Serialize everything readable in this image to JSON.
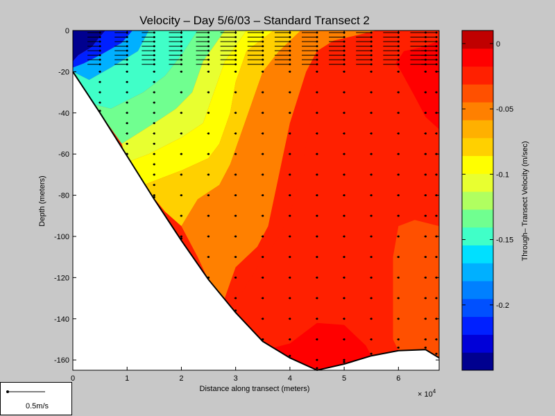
{
  "chart_data": {
    "type": "heatmap",
    "title": "Velocity – Day 5/6/03 – Standard Transect 2",
    "xlabel": "Distance along transect (meters)",
    "ylabel": "Depth (meters)",
    "x_multiplier": "× 10",
    "x_multiplier_exp": "4",
    "xlim": [
      0,
      6.75
    ],
    "ylim": [
      -165,
      0
    ],
    "x_ticks": [
      "0",
      "1",
      "2",
      "3",
      "4",
      "5",
      "6"
    ],
    "y_ticks": [
      "0",
      "-20",
      "-40",
      "-60",
      "-80",
      "-100",
      "-120",
      "-140",
      "-160"
    ],
    "colorbar": {
      "label": "Through– Transect Velocity (m/sec)",
      "range": [
        -0.25,
        0.01
      ],
      "ticks": [
        "0",
        "-0.05",
        "-0.1",
        "-0.15",
        "-0.2"
      ],
      "tick_values": [
        0,
        -0.05,
        -0.1,
        -0.15,
        -0.2
      ],
      "colors": [
        "#00008f",
        "#0000d8",
        "#0020ff",
        "#0050ff",
        "#0080ff",
        "#00b0ff",
        "#00e0ff",
        "#40ffc8",
        "#70ff90",
        "#b0ff60",
        "#e8ff30",
        "#ffff00",
        "#ffd000",
        "#ffb000",
        "#ff8000",
        "#ff5000",
        "#ff2000",
        "#ff0000",
        "#c00000"
      ]
    },
    "bottom_profile": [
      [
        0,
        -20
      ],
      [
        0.5,
        -40
      ],
      [
        1,
        -61
      ],
      [
        1.5,
        -82
      ],
      [
        2,
        -102
      ],
      [
        2.5,
        -121
      ],
      [
        3,
        -137
      ],
      [
        3.5,
        -151
      ],
      [
        4,
        -159
      ],
      [
        4.5,
        -165
      ],
      [
        5,
        -162
      ],
      [
        5.5,
        -158
      ],
      [
        6,
        -155.5
      ],
      [
        6.5,
        -155
      ],
      [
        6.75,
        -159
      ]
    ],
    "velocity_zones": [
      {
        "v": -0.24,
        "poly": [
          [
            0,
            0
          ],
          [
            0.6,
            0
          ],
          [
            0.5,
            -3
          ],
          [
            0.35,
            -8
          ],
          [
            0.1,
            -12
          ],
          [
            0,
            -15
          ]
        ]
      },
      {
        "v": -0.21,
        "poly": [
          [
            0.6,
            0
          ],
          [
            1.1,
            0
          ],
          [
            0.9,
            -6
          ],
          [
            0.5,
            -12
          ],
          [
            0.2,
            -16
          ],
          [
            0,
            -18
          ],
          [
            0,
            -15
          ],
          [
            0.1,
            -12
          ],
          [
            0.35,
            -8
          ],
          [
            0.5,
            -3
          ]
        ]
      },
      {
        "v": -0.18,
        "poly": [
          [
            1.1,
            0
          ],
          [
            1.4,
            0
          ],
          [
            1.2,
            -10
          ],
          [
            0.7,
            -18
          ],
          [
            0.3,
            -24
          ],
          [
            0,
            -20
          ],
          [
            0,
            -18
          ],
          [
            0.2,
            -16
          ],
          [
            0.5,
            -12
          ],
          [
            0.9,
            -6
          ]
        ]
      },
      {
        "v": -0.15,
        "poly": [
          [
            1.4,
            0
          ],
          [
            2.3,
            0
          ],
          [
            2.0,
            -12
          ],
          [
            1.7,
            -22
          ],
          [
            1.3,
            -30
          ],
          [
            0.7,
            -38
          ],
          [
            0.4,
            -36
          ],
          [
            0,
            -20
          ],
          [
            0.3,
            -24
          ],
          [
            0.7,
            -18
          ],
          [
            1.2,
            -10
          ]
        ]
      },
      {
        "v": -0.13,
        "poly": [
          [
            2.3,
            0
          ],
          [
            2.8,
            0
          ],
          [
            2.4,
            -15
          ],
          [
            2.2,
            -30
          ],
          [
            1.9,
            -38
          ],
          [
            1.5,
            -45
          ],
          [
            0.9,
            -55
          ],
          [
            0.5,
            -40
          ],
          [
            0.4,
            -36
          ],
          [
            0.7,
            -38
          ],
          [
            1.3,
            -30
          ],
          [
            1.7,
            -22
          ],
          [
            2.0,
            -12
          ]
        ]
      },
      {
        "v": -0.11,
        "poly": [
          [
            2.8,
            0
          ],
          [
            3.2,
            0
          ],
          [
            2.8,
            -15
          ],
          [
            2.6,
            -30
          ],
          [
            2.4,
            -45
          ],
          [
            2.0,
            -52
          ],
          [
            1.4,
            -60
          ],
          [
            1.0,
            -64
          ],
          [
            0.9,
            -55
          ],
          [
            1.5,
            -45
          ],
          [
            1.9,
            -38
          ],
          [
            2.2,
            -30
          ],
          [
            2.4,
            -15
          ]
        ]
      },
      {
        "v": -0.09,
        "poly": [
          [
            3.2,
            0
          ],
          [
            3.7,
            0
          ],
          [
            3.2,
            -10
          ],
          [
            3.0,
            -25
          ],
          [
            2.9,
            -40
          ],
          [
            2.7,
            -55
          ],
          [
            2.5,
            -62
          ],
          [
            2.0,
            -68
          ],
          [
            1.6,
            -72
          ],
          [
            1.3,
            -75
          ],
          [
            1.0,
            -64
          ],
          [
            1.4,
            -60
          ],
          [
            2.0,
            -52
          ],
          [
            2.4,
            -45
          ],
          [
            2.6,
            -30
          ],
          [
            2.8,
            -15
          ]
        ]
      },
      {
        "v": -0.075,
        "poly": [
          [
            3.7,
            0
          ],
          [
            4.2,
            0
          ],
          [
            3.8,
            -10
          ],
          [
            3.5,
            -20
          ],
          [
            3.3,
            -35
          ],
          [
            3.1,
            -50
          ],
          [
            2.9,
            -65
          ],
          [
            2.7,
            -75
          ],
          [
            2.3,
            -82
          ],
          [
            2.0,
            -95
          ],
          [
            1.7,
            -88
          ],
          [
            1.3,
            -75
          ],
          [
            1.6,
            -72
          ],
          [
            2.0,
            -68
          ],
          [
            2.5,
            -62
          ],
          [
            2.7,
            -55
          ],
          [
            2.9,
            -40
          ],
          [
            3.0,
            -25
          ],
          [
            3.2,
            -10
          ]
        ]
      },
      {
        "v": -0.055,
        "poly": [
          [
            4.2,
            0
          ],
          [
            5.6,
            0
          ],
          [
            4.8,
            -5
          ],
          [
            4.5,
            -10
          ],
          [
            4.3,
            -20
          ],
          [
            4.0,
            -45
          ],
          [
            3.8,
            -70
          ],
          [
            3.6,
            -95
          ],
          [
            3.4,
            -105
          ],
          [
            3.2,
            -110
          ],
          [
            3.0,
            -115
          ],
          [
            2.8,
            -130
          ],
          [
            2.6,
            -127
          ],
          [
            2.3,
            -110
          ],
          [
            2.0,
            -95
          ],
          [
            2.3,
            -82
          ],
          [
            2.7,
            -75
          ],
          [
            2.9,
            -65
          ],
          [
            3.1,
            -50
          ],
          [
            3.3,
            -35
          ],
          [
            3.5,
            -20
          ],
          [
            3.8,
            -10
          ]
        ]
      },
      {
        "v": -0.03,
        "poly": [
          [
            5.6,
            0
          ],
          [
            6.2,
            0
          ],
          [
            5.4,
            -5
          ],
          [
            5.1,
            -8
          ],
          [
            4.8,
            -10
          ],
          [
            4.5,
            -20
          ],
          [
            4.4,
            -40
          ],
          [
            4.2,
            -70
          ],
          [
            4.0,
            -90
          ],
          [
            3.8,
            -100
          ],
          [
            3.6,
            -108
          ],
          [
            3.4,
            -115
          ],
          [
            3.1,
            -128
          ],
          [
            2.9,
            -135
          ],
          [
            2.8,
            -130
          ],
          [
            3.0,
            -115
          ],
          [
            3.2,
            -110
          ],
          [
            3.4,
            -105
          ],
          [
            3.6,
            -95
          ],
          [
            3.8,
            -70
          ],
          [
            4.0,
            -45
          ],
          [
            4.3,
            -20
          ],
          [
            4.5,
            -10
          ],
          [
            4.8,
            -5
          ]
        ]
      },
      {
        "v": -0.02,
        "poly": [
          [
            6.2,
            0
          ],
          [
            6.75,
            0
          ],
          [
            6.75,
            -95
          ],
          [
            6.3,
            -92
          ],
          [
            6.0,
            -95
          ],
          [
            5.9,
            -110
          ],
          [
            5.9,
            -150
          ],
          [
            5.5,
            -156
          ],
          [
            5.0,
            -148
          ],
          [
            4.5,
            -145
          ],
          [
            4.2,
            -148
          ],
          [
            4.0,
            -152
          ],
          [
            3.5,
            -147
          ],
          [
            3.1,
            -138
          ],
          [
            2.9,
            -135
          ],
          [
            3.1,
            -128
          ],
          [
            3.4,
            -115
          ],
          [
            3.6,
            -108
          ],
          [
            3.8,
            -100
          ],
          [
            4.0,
            -90
          ],
          [
            4.2,
            -70
          ],
          [
            4.4,
            -40
          ],
          [
            4.5,
            -20
          ],
          [
            4.8,
            -10
          ],
          [
            5.1,
            -8
          ],
          [
            5.4,
            -5
          ]
        ]
      },
      {
        "v": -0.04,
        "poly": [
          [
            6.75,
            -95
          ],
          [
            6.75,
            -159
          ],
          [
            6.5,
            -155
          ],
          [
            6.0,
            -155.5
          ],
          [
            5.9,
            -150
          ],
          [
            5.9,
            -110
          ],
          [
            6.0,
            -95
          ],
          [
            6.3,
            -92
          ]
        ]
      },
      {
        "v": -0.005,
        "poly": [
          [
            6.1,
            -10
          ],
          [
            6.45,
            -8
          ],
          [
            6.75,
            -5
          ],
          [
            6.75,
            -48
          ],
          [
            6.5,
            -42
          ],
          [
            6.3,
            -32
          ],
          [
            6.05,
            -20
          ],
          [
            5.95,
            -16
          ]
        ]
      },
      {
        "v": -0.005,
        "poly": [
          [
            4.2,
            -148
          ],
          [
            4.5,
            -142
          ],
          [
            5.0,
            -143
          ],
          [
            5.4,
            -153
          ],
          [
            5.5,
            -158
          ],
          [
            5.0,
            -162
          ],
          [
            4.5,
            -165
          ],
          [
            4.0,
            -159
          ],
          [
            3.7,
            -154
          ],
          [
            4.0,
            -152
          ]
        ]
      }
    ],
    "arrow_columns": [
      {
        "x": 0.5,
        "max_depth": -40,
        "dirs": [
          "left",
          "left",
          "left",
          "left",
          "left",
          "left",
          "left",
          "left"
        ]
      },
      {
        "x": 1.0,
        "max_depth": -61
      },
      {
        "x": 1.5,
        "max_depth": -82
      },
      {
        "x": 2.0,
        "max_depth": -102
      },
      {
        "x": 2.5,
        "max_depth": -121
      },
      {
        "x": 3.0,
        "max_depth": -137
      },
      {
        "x": 3.5,
        "max_depth": -151
      },
      {
        "x": 4.0,
        "max_depth": -159
      },
      {
        "x": 4.5,
        "max_depth": -165
      },
      {
        "x": 5.0,
        "max_depth": -162
      },
      {
        "x": 5.5,
        "max_depth": -158
      },
      {
        "x": 6.0,
        "max_depth": -155
      },
      {
        "x": 6.5,
        "max_depth": -155
      },
      {
        "x": 6.7,
        "max_depth": -158
      }
    ],
    "scale_label": "0.5m/s"
  }
}
